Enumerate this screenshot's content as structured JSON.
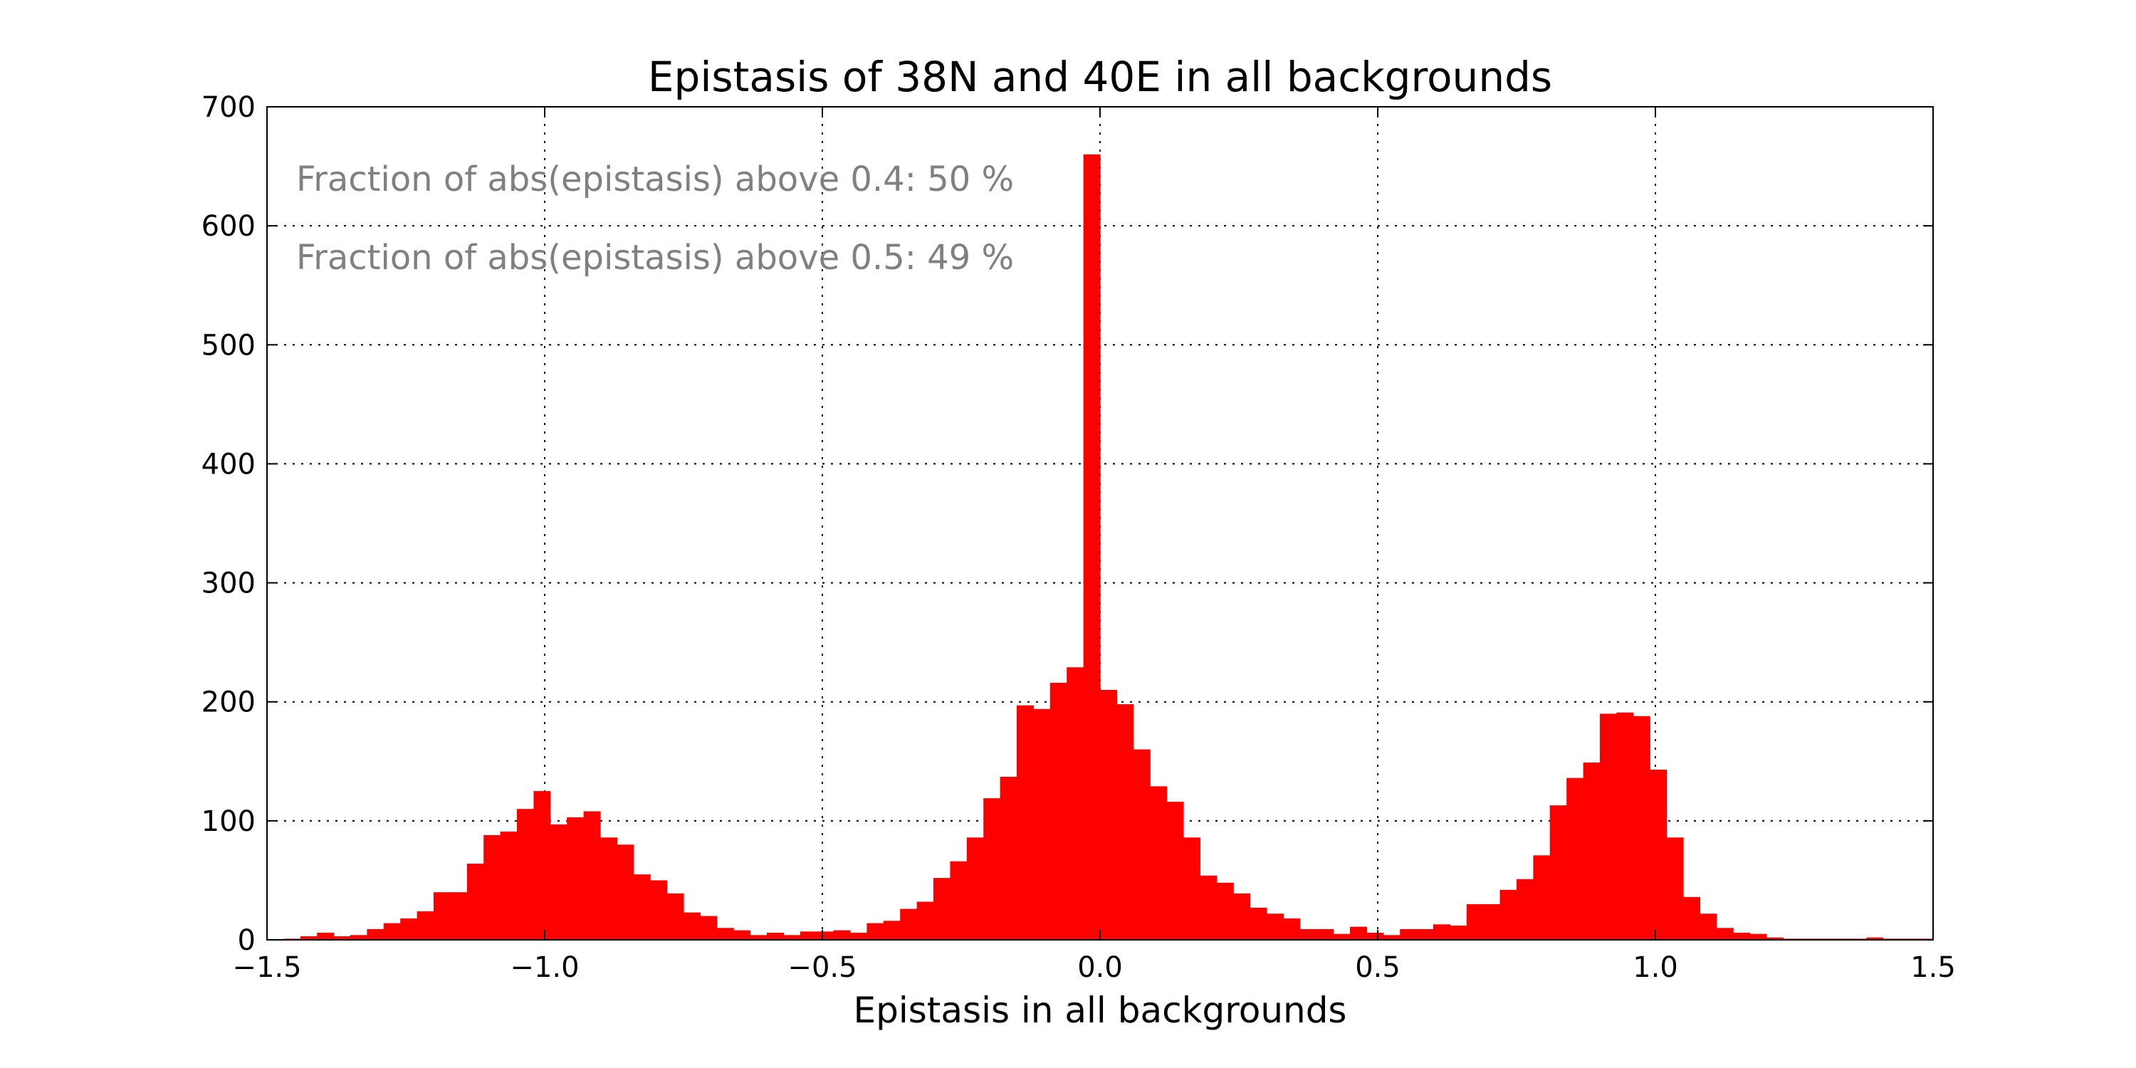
{
  "chart_data": {
    "type": "bar",
    "title": "Epistasis of 38N and 40E in all backgrounds",
    "xlabel": "Epistasis in all backgrounds",
    "ylabel": "",
    "xlim": [
      -1.5,
      1.5
    ],
    "ylim": [
      0,
      700
    ],
    "bin_width": 0.03,
    "bin_start": -1.5,
    "bar_color": "#ff0000",
    "grid": true,
    "xticks": [
      -1.5,
      -1.0,
      -0.5,
      0.0,
      0.5,
      1.0,
      1.5
    ],
    "xtick_labels": [
      "−1.5",
      "−1.0",
      "−0.5",
      "0.0",
      "0.5",
      "1.0",
      "1.5"
    ],
    "yticks": [
      0,
      100,
      200,
      300,
      400,
      500,
      600,
      700
    ],
    "ytick_labels": [
      "0",
      "100",
      "200",
      "300",
      "400",
      "500",
      "600",
      "700"
    ],
    "annotations": [
      "Fraction of abs(epistasis) above 0.4: 50 %",
      "Fraction of abs(epistasis) above 0.5: 49 %"
    ],
    "values": [
      0,
      1,
      3,
      6,
      3,
      4,
      9,
      14,
      18,
      24,
      40,
      40,
      64,
      88,
      91,
      110,
      125,
      97,
      103,
      108,
      86,
      80,
      55,
      50,
      39,
      23,
      20,
      10,
      8,
      4,
      6,
      4,
      7,
      7,
      8,
      6,
      14,
      16,
      26,
      32,
      52,
      66,
      86,
      119,
      137,
      197,
      194,
      216,
      229,
      660,
      210,
      198,
      160,
      129,
      116,
      86,
      54,
      48,
      39,
      27,
      22,
      18,
      9,
      9,
      5,
      11,
      6,
      4,
      9,
      9,
      13,
      12,
      30,
      30,
      42,
      51,
      71,
      113,
      136,
      149,
      190,
      191,
      188,
      143,
      86,
      36,
      22,
      10,
      6,
      5,
      2,
      1,
      1,
      1,
      1,
      1,
      2,
      1,
      1,
      1
    ]
  }
}
